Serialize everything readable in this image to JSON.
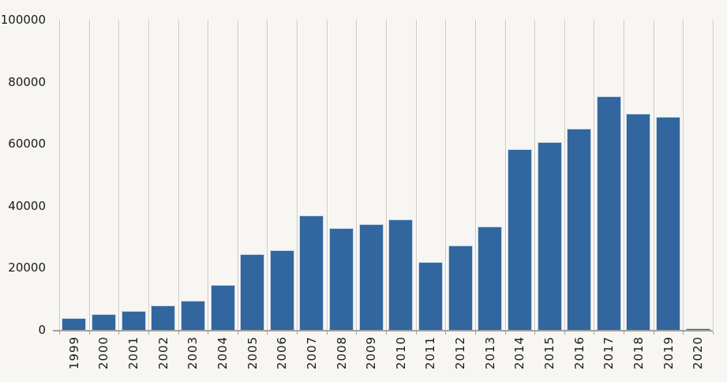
{
  "chart_data": {
    "type": "bar",
    "title": "",
    "xlabel": "",
    "ylabel": "",
    "categories": [
      "1999",
      "2000",
      "2001",
      "2002",
      "2003",
      "2004",
      "2005",
      "2006",
      "2007",
      "2008",
      "2009",
      "2010",
      "2011",
      "2012",
      "2013",
      "2014",
      "2015",
      "2016",
      "2017",
      "2018",
      "2019",
      "2020"
    ],
    "values": [
      3700,
      5000,
      6200,
      8000,
      9300,
      14400,
      24400,
      25600,
      37000,
      32900,
      34200,
      35600,
      21800,
      27200,
      33300,
      58200,
      60500,
      64900,
      75300,
      69800,
      68600,
      400
    ],
    "ylim": [
      0,
      100000
    ],
    "yticks": [
      0,
      20000,
      40000,
      60000,
      80000,
      100000
    ],
    "grid": "vertical-columns-only",
    "legend": "none",
    "colors": {
      "bar_fill": "#31679e",
      "bar_border": "#c9d6e6",
      "background": "#f8f6f3",
      "gridline": "#ccc8c4",
      "axis_line": "#a5a19d",
      "label_text": "#1a1a1a"
    }
  }
}
